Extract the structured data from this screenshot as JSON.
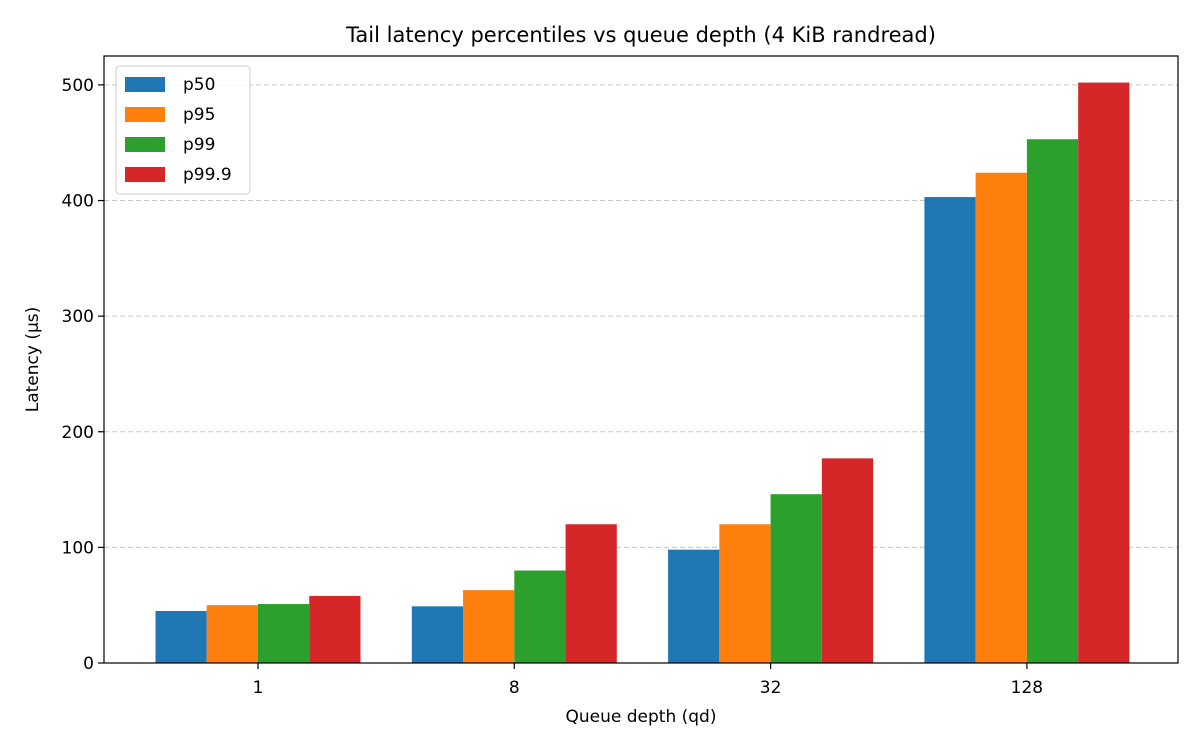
{
  "chart_data": {
    "type": "bar",
    "title": "Tail latency percentiles vs queue depth (4 KiB randread)",
    "xlabel": "Queue depth (qd)",
    "ylabel": "Latency (µs)",
    "categories": [
      "1",
      "8",
      "32",
      "128"
    ],
    "ylim": [
      0,
      525
    ],
    "yticks": [
      0,
      100,
      200,
      300,
      400,
      500
    ],
    "grid": "y-dashed",
    "legend_position": "top-left",
    "series": [
      {
        "name": "p50",
        "color": "#1f77b4",
        "values": [
          45,
          49,
          98,
          403
        ]
      },
      {
        "name": "p95",
        "color": "#ff7f0e",
        "values": [
          50,
          63,
          120,
          424
        ]
      },
      {
        "name": "p99",
        "color": "#2ca02c",
        "values": [
          51,
          80,
          146,
          453
        ]
      },
      {
        "name": "p99.9",
        "color": "#d62728",
        "values": [
          58,
          120,
          177,
          502
        ]
      }
    ]
  }
}
